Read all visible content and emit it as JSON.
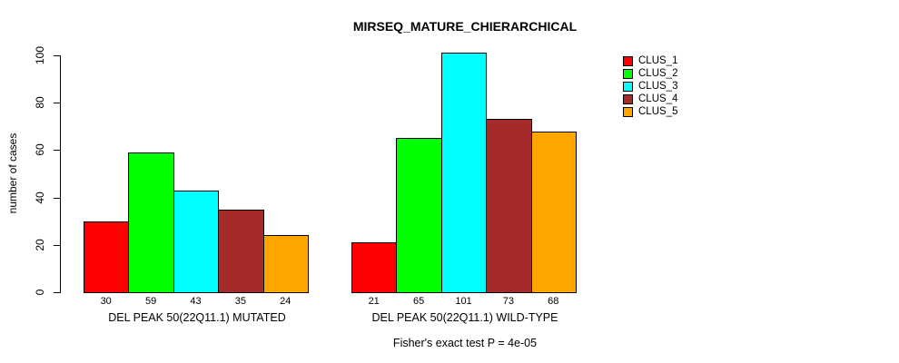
{
  "page": {
    "background": "#FFFFFF"
  },
  "chart_data": {
    "type": "bar",
    "title": "MIRSEQ_MATURE_CHIERARCHICAL",
    "ylabel": "number of cases",
    "xlabel": "",
    "ylim": [
      0,
      100
    ],
    "yticks": [
      0,
      20,
      40,
      60,
      80,
      100
    ],
    "grid": false,
    "legend_position": "top-right",
    "series_names": [
      "CLUS_1",
      "CLUS_2",
      "CLUS_3",
      "CLUS_4",
      "CLUS_5"
    ],
    "colors": [
      "#FF0000",
      "#00FF00",
      "#00FFFF",
      "#A52A2A",
      "#FFA500"
    ],
    "legend": [
      {
        "label": "CLUS_1",
        "color": "#FF0000"
      },
      {
        "label": "CLUS_2",
        "color": "#00FF00"
      },
      {
        "label": "CLUS_3",
        "color": "#00FFFF"
      },
      {
        "label": "CLUS_4",
        "color": "#A52A2A"
      },
      {
        "label": "CLUS_5",
        "color": "#FFA500"
      }
    ],
    "groups": [
      {
        "label": "DEL PEAK 50(22Q11.1) MUTATED",
        "values": [
          30,
          59,
          43,
          35,
          24
        ]
      },
      {
        "label": "DEL PEAK 50(22Q11.1) WILD-TYPE",
        "values": [
          21,
          65,
          101,
          73,
          68
        ]
      }
    ],
    "annotation": "Fisher's exact test P = 4e-05"
  }
}
